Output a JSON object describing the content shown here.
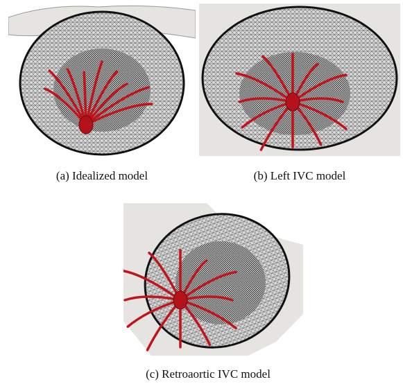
{
  "figure": {
    "panels": [
      {
        "caption": "(a)  Idealized model"
      },
      {
        "caption": "(b)  Left IVC model"
      },
      {
        "caption": "(c)  Retroaortic IVC model"
      }
    ]
  }
}
